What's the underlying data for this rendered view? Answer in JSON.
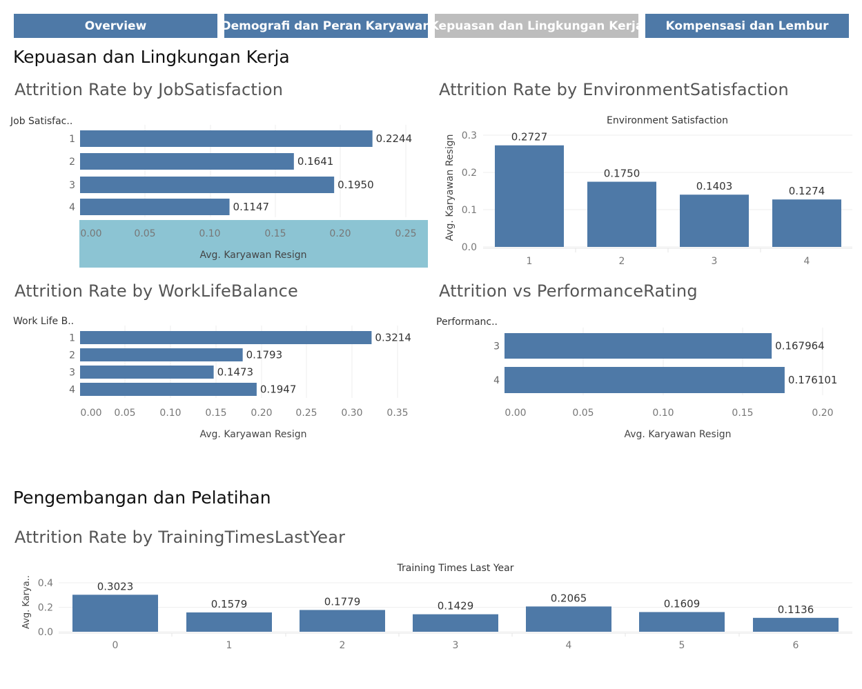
{
  "colors": {
    "bar": "#4e79a7",
    "tab": "#4e79a7",
    "tab_active": "#bdbdbd",
    "highlight": "#8cc4d3"
  },
  "tabs": [
    {
      "label": "Overview",
      "active": false
    },
    {
      "label": "Demografi dan Peran Karyawan",
      "active": false
    },
    {
      "label": "Kepuasan dan Lingkungan Kerja",
      "active": true
    },
    {
      "label": "Kompensasi dan Lembur",
      "active": false
    }
  ],
  "sections": {
    "satisfaction": "Kepuasan dan Lingkungan Kerja",
    "training": "Pengembangan dan Pelatihan"
  },
  "chart_data": [
    {
      "id": "job",
      "type": "bar",
      "orientation": "horizontal",
      "title": "Attrition Rate by JobSatisfaction",
      "category_header": "Job Satisfac..",
      "categories": [
        "1",
        "2",
        "3",
        "4"
      ],
      "values": [
        0.2244,
        0.1641,
        0.195,
        0.1147
      ],
      "labels": [
        "0.2244",
        "0.1641",
        "0.1950",
        "0.1147"
      ],
      "xlabel": "Avg. Karyawan Resign",
      "ticks": [
        "0.00",
        "0.05",
        "0.10",
        "0.15",
        "0.20",
        "0.25"
      ],
      "xlim": [
        0,
        0.26
      ]
    },
    {
      "id": "env",
      "type": "bar",
      "orientation": "vertical",
      "title": "Attrition Rate by EnvironmentSatisfaction",
      "xheader": "Environment Satisfaction",
      "categories": [
        "1",
        "2",
        "3",
        "4"
      ],
      "values": [
        0.2727,
        0.175,
        0.1403,
        0.1274
      ],
      "labels": [
        "0.2727",
        "0.1750",
        "0.1403",
        "0.1274"
      ],
      "ylabel": "Avg. Karyawan Resign",
      "ticks": [
        "0.0",
        "0.1",
        "0.2",
        "0.3"
      ],
      "ylim": [
        0,
        0.32
      ]
    },
    {
      "id": "wlb",
      "type": "bar",
      "orientation": "horizontal",
      "title": "Attrition Rate by WorkLifeBalance",
      "category_header": "Work Life B..",
      "categories": [
        "1",
        "2",
        "3",
        "4"
      ],
      "values": [
        0.3214,
        0.1793,
        0.1473,
        0.1947
      ],
      "labels": [
        "0.3214",
        "0.1793",
        "0.1473",
        "0.1947"
      ],
      "xlabel": "Avg. Karyawan Resign",
      "ticks": [
        "0.00",
        "0.05",
        "0.10",
        "0.15",
        "0.20",
        "0.25",
        "0.30",
        "0.35"
      ],
      "xlim": [
        0,
        0.38
      ]
    },
    {
      "id": "perf",
      "type": "bar",
      "orientation": "horizontal",
      "title": "Attrition vs PerformanceRating",
      "category_header": "Performanc..",
      "categories": [
        "3",
        "4"
      ],
      "values": [
        0.167964,
        0.176101
      ],
      "labels": [
        "0.167964",
        "0.176101"
      ],
      "xlabel": "Avg. Karyawan Resign",
      "ticks": [
        "0.00",
        "0.05",
        "0.10",
        "0.15",
        "0.20"
      ],
      "xlim": [
        0,
        0.22
      ]
    },
    {
      "id": "train",
      "type": "bar",
      "orientation": "vertical",
      "title": "Attrition Rate by TrainingTimesLastYear",
      "xheader": "Training Times Last Year",
      "categories": [
        "0",
        "1",
        "2",
        "3",
        "4",
        "5",
        "6"
      ],
      "values": [
        0.3023,
        0.1579,
        0.1779,
        0.1429,
        0.2065,
        0.1609,
        0.1136
      ],
      "labels": [
        "0.3023",
        "0.1579",
        "0.1779",
        "0.1429",
        "0.2065",
        "0.1609",
        "0.1136"
      ],
      "ylabel": "Avg. Karya..",
      "ticks": [
        "0.0",
        "0.2",
        "0.4"
      ],
      "ylim": [
        0,
        0.42
      ]
    }
  ]
}
